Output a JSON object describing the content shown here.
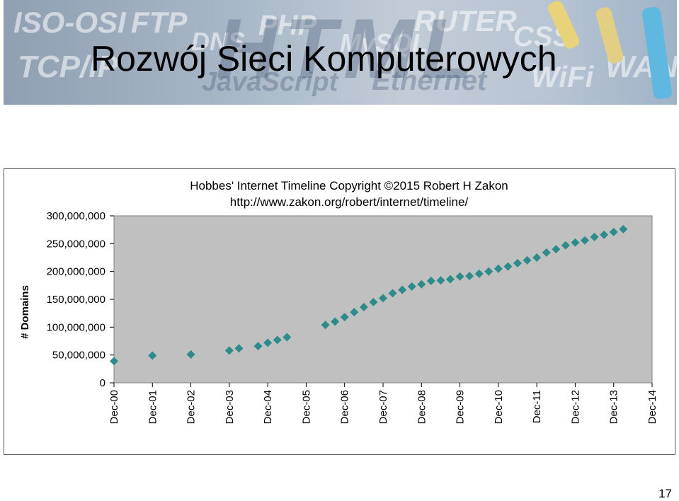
{
  "slide": {
    "title": "Rozwój Sieci Komputerowych",
    "page_number": "17"
  },
  "banner": {
    "words": [
      "ISO-OSI",
      "FTP",
      "DNS",
      "PHP",
      "MySQL",
      "RUTER",
      "CSS",
      "TCP/IP",
      "JavaScript",
      "Ethernet",
      "HTML",
      "WiFi",
      "WAN"
    ]
  },
  "chart_data": {
    "type": "scatter",
    "title": "Hobbes' Internet Timeline Copyright ©2015 Robert H Zakon",
    "subtitle": "http://www.zakon.org/robert/internet/timeline/",
    "ylabel": "# Domains",
    "xlabel": "",
    "ylim": [
      0,
      300000000
    ],
    "y_ticks": [
      0,
      50000000,
      100000000,
      150000000,
      200000000,
      250000000,
      300000000
    ],
    "y_tick_labels": [
      "0",
      "50,000,000",
      "100,000,000",
      "150,000,000",
      "200,000,000",
      "250,000,000",
      "300,000,000"
    ],
    "x_tick_labels": [
      "Dec-00",
      "Dec-01",
      "Dec-02",
      "Dec-03",
      "Dec-04",
      "Dec-05",
      "Dec-06",
      "Dec-07",
      "Dec-08",
      "Dec-09",
      "Dec-10",
      "Dec-11",
      "Dec-12",
      "Dec-13",
      "Dec-14"
    ],
    "xlim": [
      "2000-12",
      "2014-12"
    ],
    "grid": false,
    "plot_background": "#c0c0c0",
    "marker_color": "#2e8b8b",
    "marker": "diamond",
    "points": [
      {
        "x": "2000-12",
        "y": 39000000
      },
      {
        "x": "2001-12",
        "y": 49000000
      },
      {
        "x": "2002-12",
        "y": 51000000
      },
      {
        "x": "2003-12",
        "y": 58000000
      },
      {
        "x": "2004-03",
        "y": 62000000
      },
      {
        "x": "2004-09",
        "y": 66000000
      },
      {
        "x": "2004-12",
        "y": 72000000
      },
      {
        "x": "2005-03",
        "y": 77000000
      },
      {
        "x": "2005-06",
        "y": 82000000
      },
      {
        "x": "2006-06",
        "y": 104000000
      },
      {
        "x": "2006-09",
        "y": 110000000
      },
      {
        "x": "2006-12",
        "y": 118000000
      },
      {
        "x": "2007-03",
        "y": 127000000
      },
      {
        "x": "2007-06",
        "y": 136000000
      },
      {
        "x": "2007-09",
        "y": 145000000
      },
      {
        "x": "2007-12",
        "y": 152000000
      },
      {
        "x": "2008-03",
        "y": 161000000
      },
      {
        "x": "2008-06",
        "y": 167000000
      },
      {
        "x": "2008-09",
        "y": 173000000
      },
      {
        "x": "2008-12",
        "y": 177000000
      },
      {
        "x": "2009-03",
        "y": 183000000
      },
      {
        "x": "2009-06",
        "y": 184000000
      },
      {
        "x": "2009-09",
        "y": 186000000
      },
      {
        "x": "2009-12",
        "y": 191000000
      },
      {
        "x": "2010-03",
        "y": 192000000
      },
      {
        "x": "2010-06",
        "y": 196000000
      },
      {
        "x": "2010-09",
        "y": 200000000
      },
      {
        "x": "2010-12",
        "y": 205000000
      },
      {
        "x": "2011-03",
        "y": 209000000
      },
      {
        "x": "2011-06",
        "y": 215000000
      },
      {
        "x": "2011-09",
        "y": 220000000
      },
      {
        "x": "2011-12",
        "y": 225000000
      },
      {
        "x": "2012-03",
        "y": 234000000
      },
      {
        "x": "2012-06",
        "y": 240000000
      },
      {
        "x": "2012-09",
        "y": 247000000
      },
      {
        "x": "2012-12",
        "y": 252000000
      },
      {
        "x": "2013-03",
        "y": 256000000
      },
      {
        "x": "2013-06",
        "y": 262000000
      },
      {
        "x": "2013-09",
        "y": 266000000
      },
      {
        "x": "2013-12",
        "y": 271000000
      },
      {
        "x": "2014-03",
        "y": 276000000
      }
    ]
  }
}
